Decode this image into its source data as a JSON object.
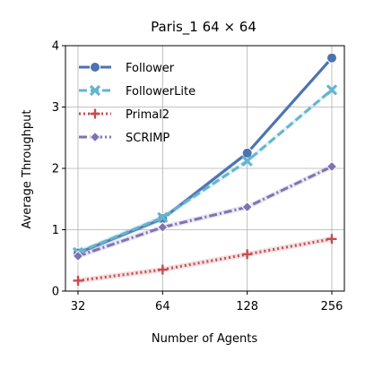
{
  "chart_data": {
    "type": "line",
    "title": "Paris_1 64 × 64",
    "xlabel": "Number of Agents",
    "ylabel": "Average Throughput",
    "x": [
      32,
      64,
      128,
      256
    ],
    "xticks": [
      "32",
      "64",
      "128",
      "256"
    ],
    "x_scale": "log2",
    "ylim": [
      0,
      4
    ],
    "yticks": [
      "0",
      "1",
      "2",
      "3",
      "4"
    ],
    "grid": true,
    "legend_position": "upper-left",
    "series": [
      {
        "name": "Follower",
        "values": [
          0.62,
          1.18,
          2.25,
          3.8
        ],
        "color": "#4c72b0",
        "marker": "circle",
        "dash": "solid"
      },
      {
        "name": "FollowerLite",
        "values": [
          0.63,
          1.2,
          2.12,
          3.28
        ],
        "color": "#64b5cd",
        "marker": "x",
        "dash": "dashed"
      },
      {
        "name": "Primal2",
        "values": [
          0.17,
          0.35,
          0.6,
          0.85
        ],
        "color": "#c44e52",
        "marker": "plus",
        "dash": "dotted"
      },
      {
        "name": "SCRIMP",
        "values": [
          0.57,
          1.04,
          1.37,
          2.03
        ],
        "color": "#8172b3",
        "marker": "diamond",
        "dash": "dashdot"
      }
    ]
  }
}
